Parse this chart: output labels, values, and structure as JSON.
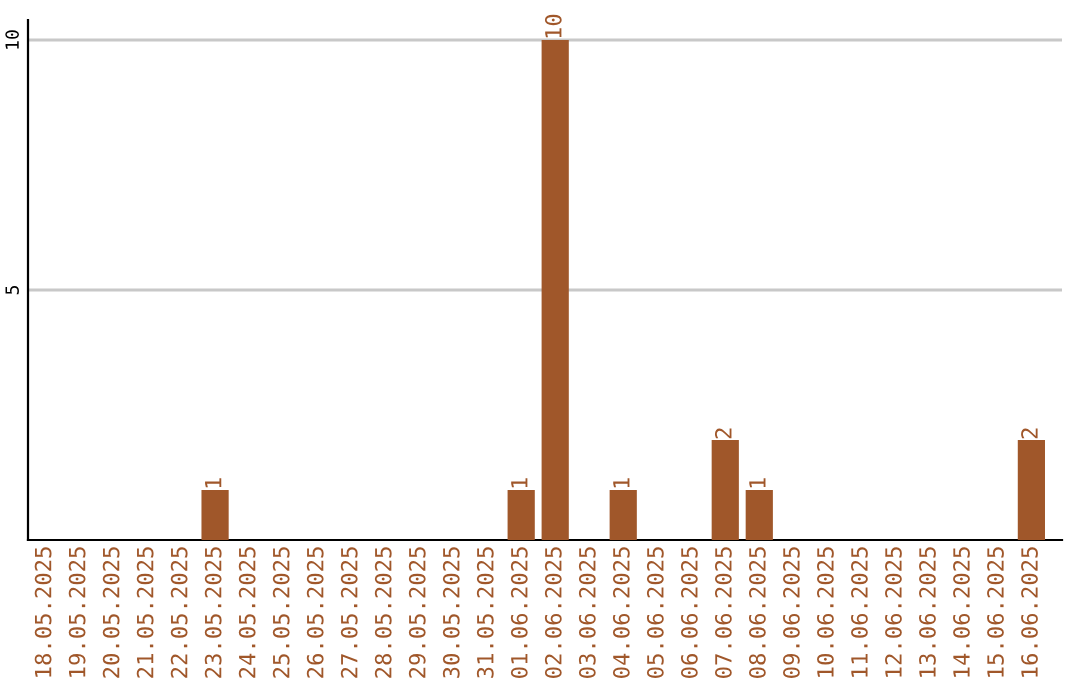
{
  "chart_data": {
    "type": "bar",
    "categories": [
      "18.05.2025",
      "19.05.2025",
      "20.05.2025",
      "21.05.2025",
      "22.05.2025",
      "23.05.2025",
      "24.05.2025",
      "25.05.2025",
      "26.05.2025",
      "27.05.2025",
      "28.05.2025",
      "29.05.2025",
      "30.05.2025",
      "31.05.2025",
      "01.06.2025",
      "02.06.2025",
      "03.06.2025",
      "04.06.2025",
      "05.06.2025",
      "06.06.2025",
      "07.06.2025",
      "08.06.2025",
      "09.06.2025",
      "10.06.2025",
      "11.06.2025",
      "12.06.2025",
      "13.06.2025",
      "14.06.2025",
      "15.06.2025",
      "16.06.2025"
    ],
    "values": [
      0,
      0,
      0,
      0,
      0,
      1,
      0,
      0,
      0,
      0,
      0,
      0,
      0,
      0,
      1,
      10,
      0,
      1,
      0,
      0,
      2,
      1,
      0,
      0,
      0,
      0,
      0,
      0,
      0,
      2
    ],
    "value_labels": [
      null,
      null,
      null,
      null,
      null,
      "1",
      null,
      null,
      null,
      null,
      null,
      null,
      null,
      null,
      "1",
      "10",
      null,
      "1",
      null,
      null,
      "2",
      "1",
      null,
      null,
      null,
      null,
      null,
      null,
      null,
      "2"
    ],
    "color": "#a0572a",
    "ylim": [
      0,
      10.4
    ],
    "yticks": [
      5,
      10
    ],
    "grid": "y",
    "legend": false
  }
}
